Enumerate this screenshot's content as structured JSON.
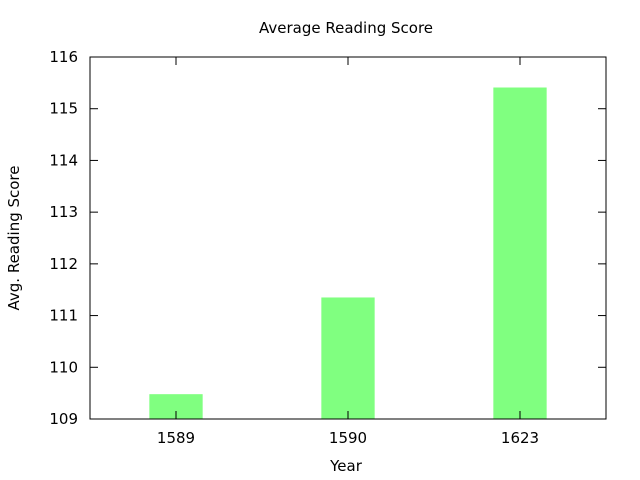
{
  "chart_data": {
    "type": "bar",
    "title": "Average Reading Score",
    "xlabel": "Year",
    "ylabel": "Avg. Reading Score",
    "categories": [
      "1589",
      "1590",
      "1623"
    ],
    "values": [
      109.48,
      111.35,
      115.41
    ],
    "ylim": [
      109,
      116
    ],
    "yticks": [
      109,
      110,
      111,
      112,
      113,
      114,
      115,
      116
    ],
    "grid": false,
    "legend": "none",
    "bar_color": "#80ff80"
  }
}
